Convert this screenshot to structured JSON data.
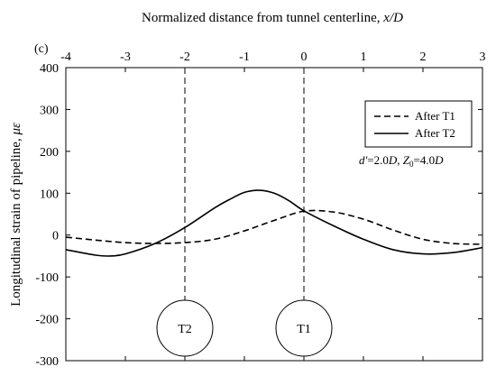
{
  "chart_data": {
    "type": "line",
    "panel_label": "(c)",
    "xlabel_prefix": "Normalized distance from tunnel centerline, ",
    "xlabel_var": "x/D",
    "ylabel_prefix": "Longitudinal strain of pipeline, ",
    "ylabel_var": "με",
    "xlim": [
      -4,
      3
    ],
    "ylim": [
      -300,
      400
    ],
    "x_ticks": [
      -4,
      -3,
      -2,
      -1,
      0,
      1,
      2,
      3
    ],
    "y_ticks": [
      400,
      300,
      200,
      100,
      0,
      -100,
      -200,
      -300
    ],
    "x_tick_labels": [
      "-4",
      "-3",
      "-2",
      "-1",
      "0",
      "1",
      "2",
      "3"
    ],
    "y_tick_labels": [
      "400",
      "300",
      "200",
      "100",
      "0",
      "-100",
      "-200",
      "-300"
    ],
    "series": [
      {
        "name": "After T1",
        "style": "dashed",
        "x": [
          -4,
          -3.5,
          -3,
          -2.5,
          -2,
          -1.5,
          -1,
          -0.5,
          0,
          0.5,
          1,
          1.5,
          2,
          2.5,
          3
        ],
        "y": [
          -5,
          -12,
          -18,
          -20,
          -18,
          -10,
          10,
          35,
          57,
          55,
          38,
          12,
          -10,
          -20,
          -22
        ]
      },
      {
        "name": "After T2",
        "style": "solid",
        "x": [
          -4,
          -3.5,
          -3.25,
          -3,
          -2.5,
          -2,
          -1.5,
          -1.25,
          -1,
          -0.75,
          -0.5,
          -0.25,
          0,
          0.5,
          1,
          1.5,
          2,
          2.5,
          3
        ],
        "y": [
          -35,
          -48,
          -50,
          -45,
          -20,
          18,
          65,
          85,
          102,
          107,
          100,
          82,
          58,
          22,
          -10,
          -35,
          -45,
          -42,
          -30
        ]
      }
    ],
    "annotation": {
      "d_symbol": "d'",
      "d_value": "=2.0",
      "d_unit": "D",
      "z_symbol": "Z",
      "z_sub": "0",
      "z_value": "=4.0",
      "z_unit": "D",
      "separator": ", "
    },
    "tunnels": [
      {
        "label": "T2",
        "x": -2
      },
      {
        "label": "T1",
        "x": 0
      }
    ],
    "legend_position": "top-right"
  }
}
